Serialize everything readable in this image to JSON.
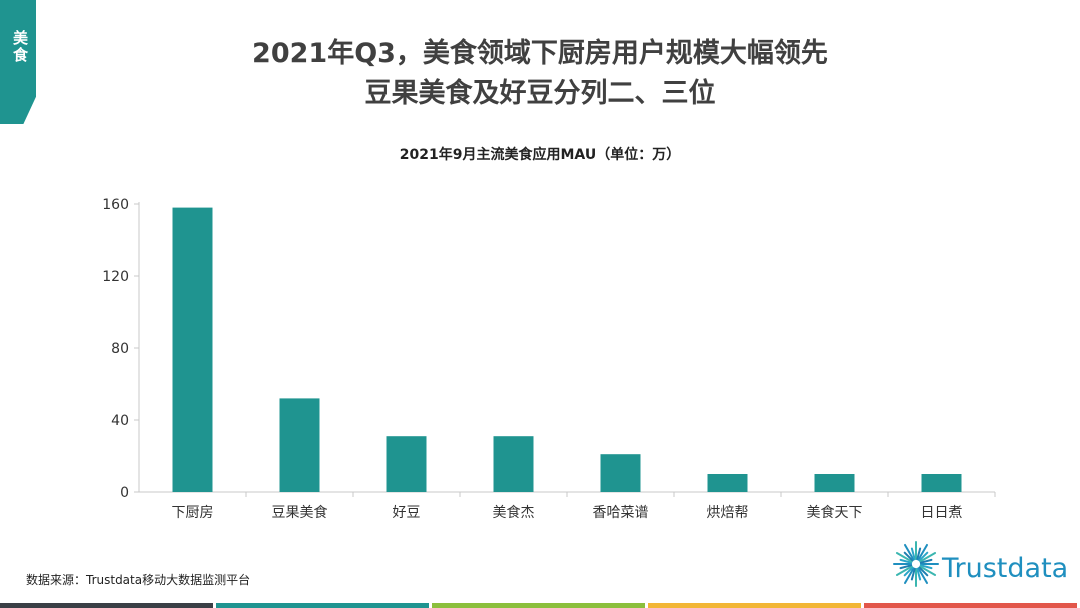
{
  "side_tab": {
    "label": "美食",
    "color": "#1f9490"
  },
  "headline": {
    "line1": "2021年Q3，美食领域下厨房用户规模大幅领先",
    "line2": "豆果美食及好豆分列二、三位"
  },
  "chart_data": {
    "type": "bar",
    "title": "2021年9月主流美食应用MAU（单位：万）",
    "categories": [
      "下厨房",
      "豆果美食",
      "好豆",
      "美食杰",
      "香哈菜谱",
      "烘焙帮",
      "美食天下",
      "日日煮"
    ],
    "values": [
      158,
      52,
      31,
      31,
      21,
      10,
      10,
      10
    ],
    "ylim": [
      0,
      160
    ],
    "yticks": [
      0,
      40,
      80,
      120,
      160
    ],
    "xlabel": "",
    "ylabel": "",
    "grid": false,
    "bar_color": "#1f9490"
  },
  "source": "数据来源：Trustdata移动大数据监测平台",
  "logo": {
    "text": "Trustdata",
    "color": "#1f8fbf",
    "icon": "sunburst-icon"
  },
  "footer_colors": [
    "#3a3f45",
    "#1f9490",
    "#8bbf3c",
    "#f2b636",
    "#e2564a"
  ]
}
